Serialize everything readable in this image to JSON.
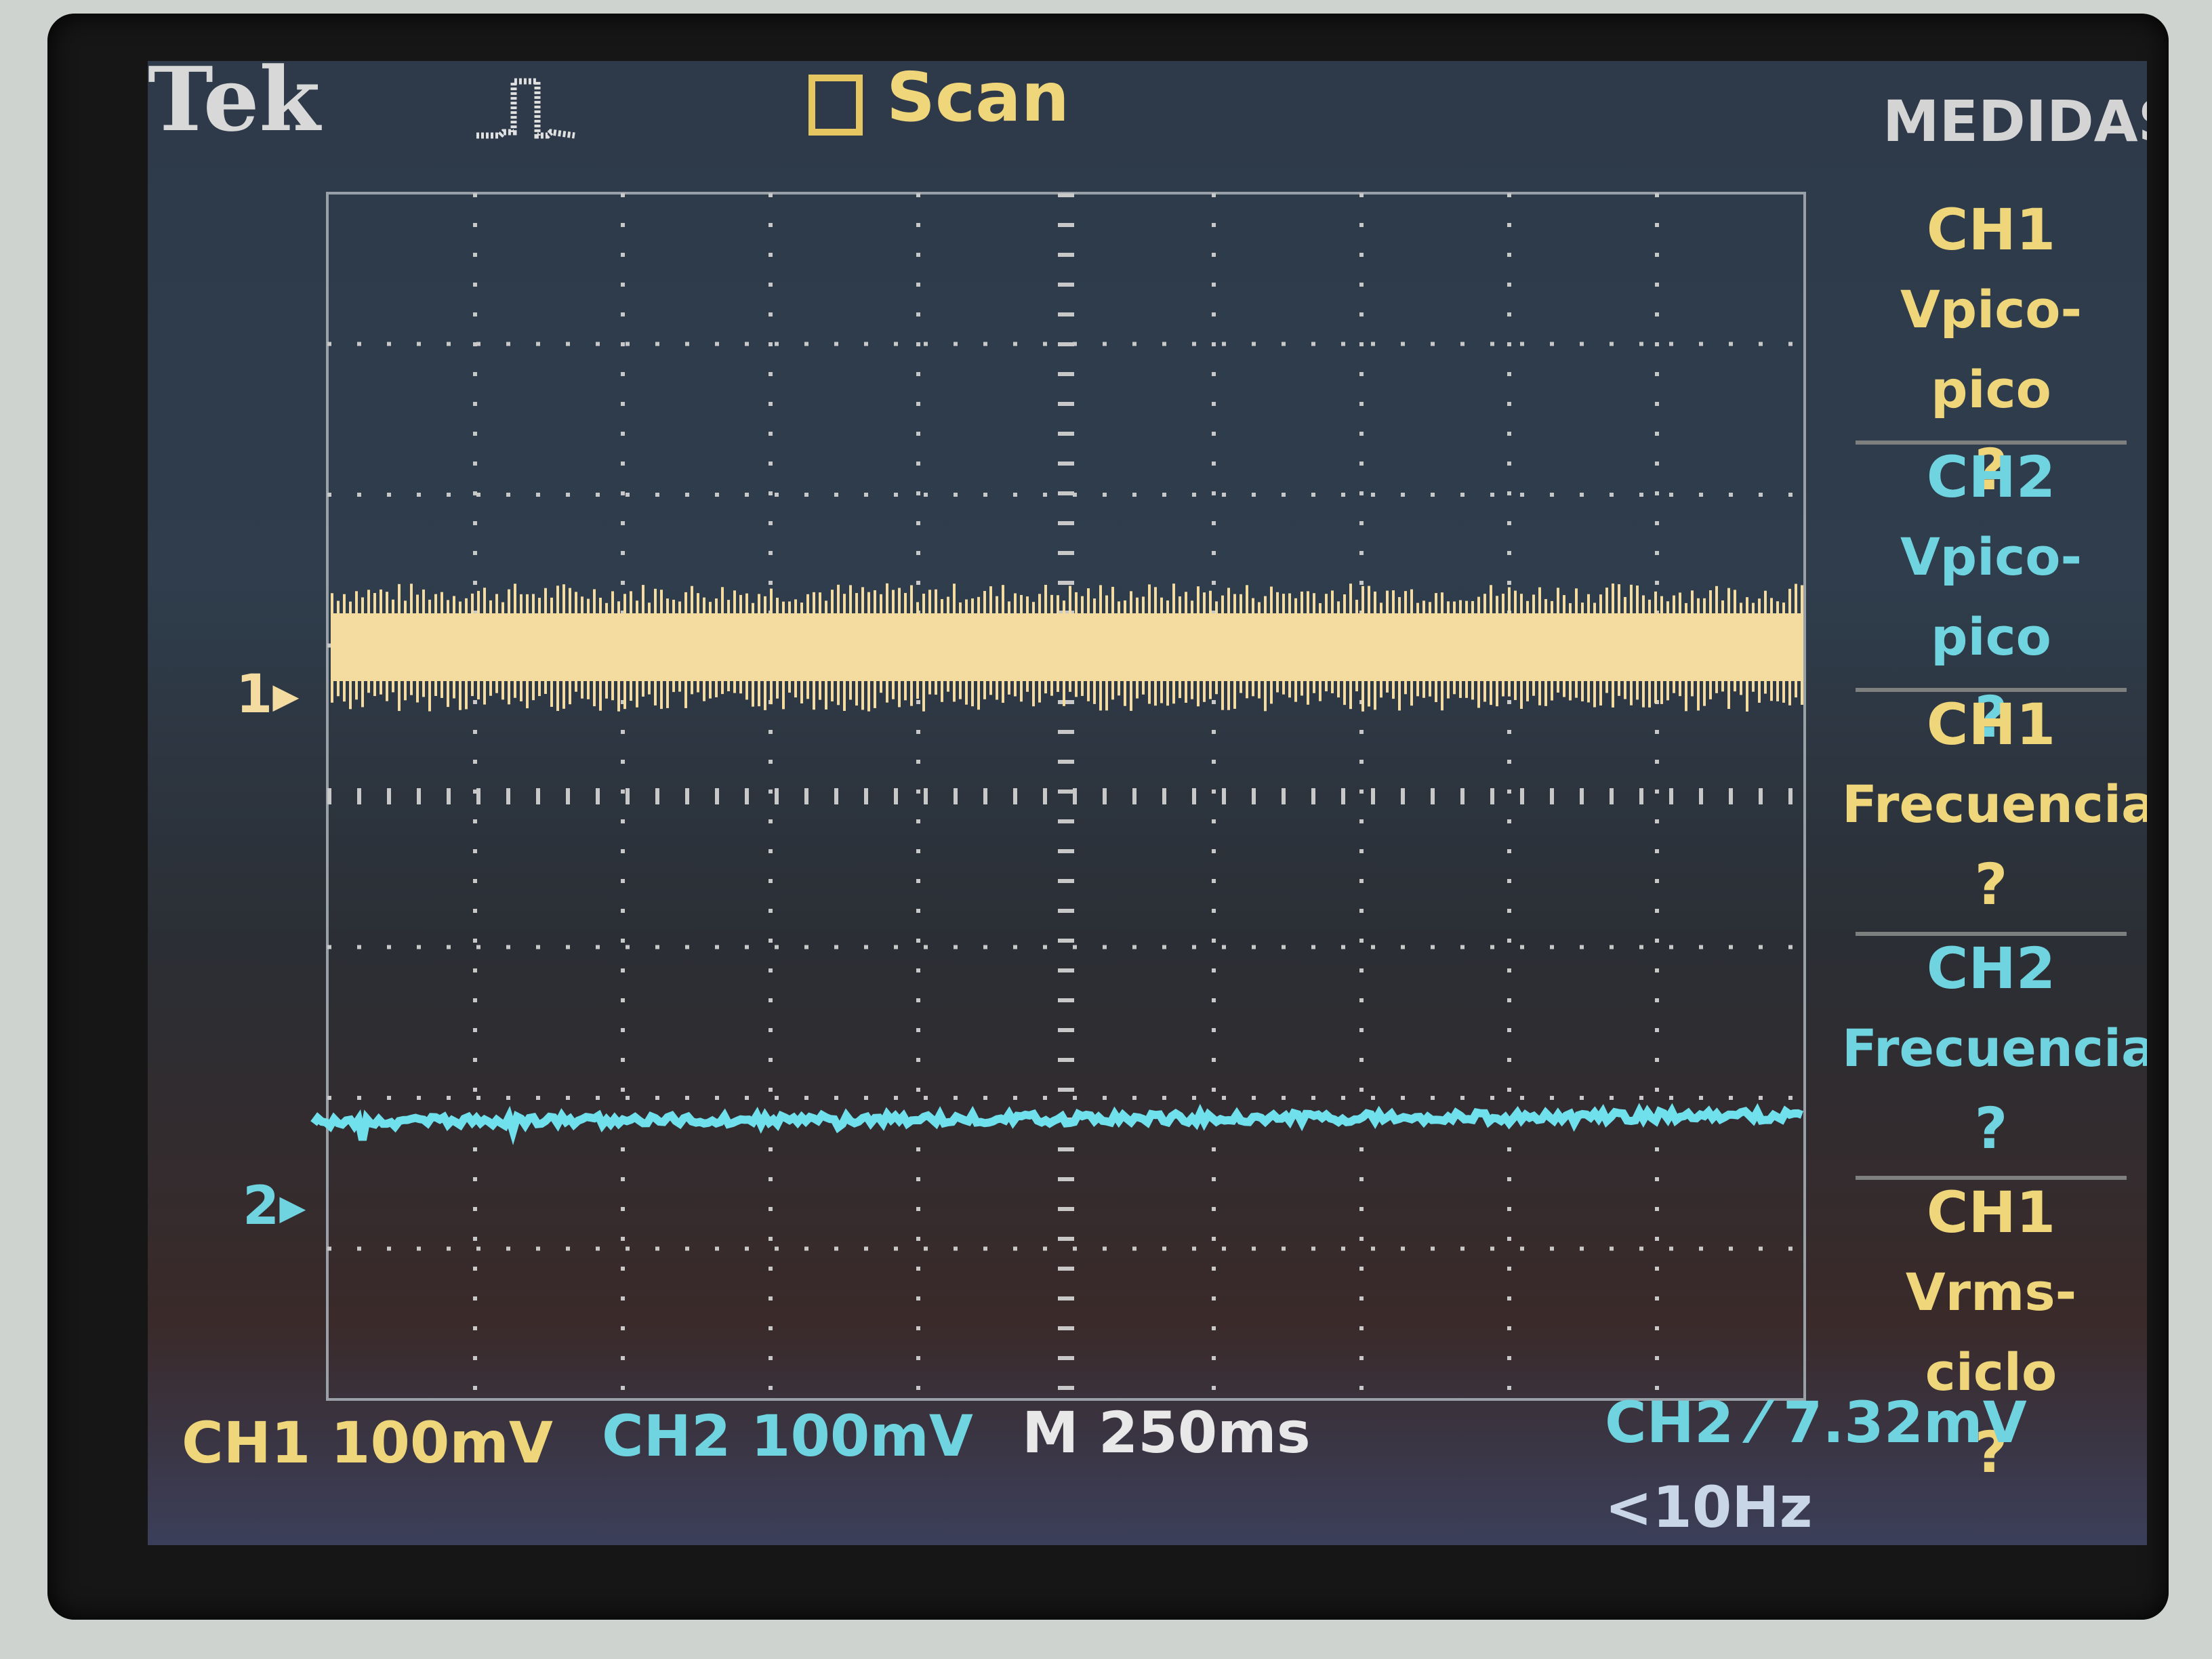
{
  "header": {
    "logo": "Tek",
    "trigger_icon": "pulse-waveform-icon",
    "acquire_mode": "Scan"
  },
  "colors": {
    "ch1": "#f4dca0",
    "ch2": "#6fe0ec",
    "menu_title": "#d4d4d4",
    "grid": "#c8c8c8"
  },
  "channels": {
    "ch1_marker": "1",
    "ch2_marker": "2"
  },
  "menu": {
    "title": "MEDIDAS",
    "items": [
      {
        "channel": "CH1",
        "measurement": "Vpico-pico",
        "value": "?",
        "color": "#f0d67a"
      },
      {
        "channel": "CH2",
        "measurement": "Vpico-pico",
        "value": "?",
        "color": "#6fd4e0"
      },
      {
        "channel": "CH1",
        "measurement": "Frecuencia",
        "value": "?",
        "color": "#f0d67a"
      },
      {
        "channel": "CH2",
        "measurement": "Frecuencia",
        "value": "?",
        "color": "#6fd4e0"
      },
      {
        "channel": "CH1",
        "measurement": "Vrms-ciclo",
        "value": "?",
        "color": "#f0d67a"
      }
    ]
  },
  "status": {
    "ch1_label": "CH1",
    "ch1_scale": "100mV",
    "ch2_label": "CH2",
    "ch2_scale": "100mV",
    "timebase": "M 250ms",
    "trigger": "CH2 ⁄ 7.32mV",
    "trigger_freq": "<10Hz"
  }
}
